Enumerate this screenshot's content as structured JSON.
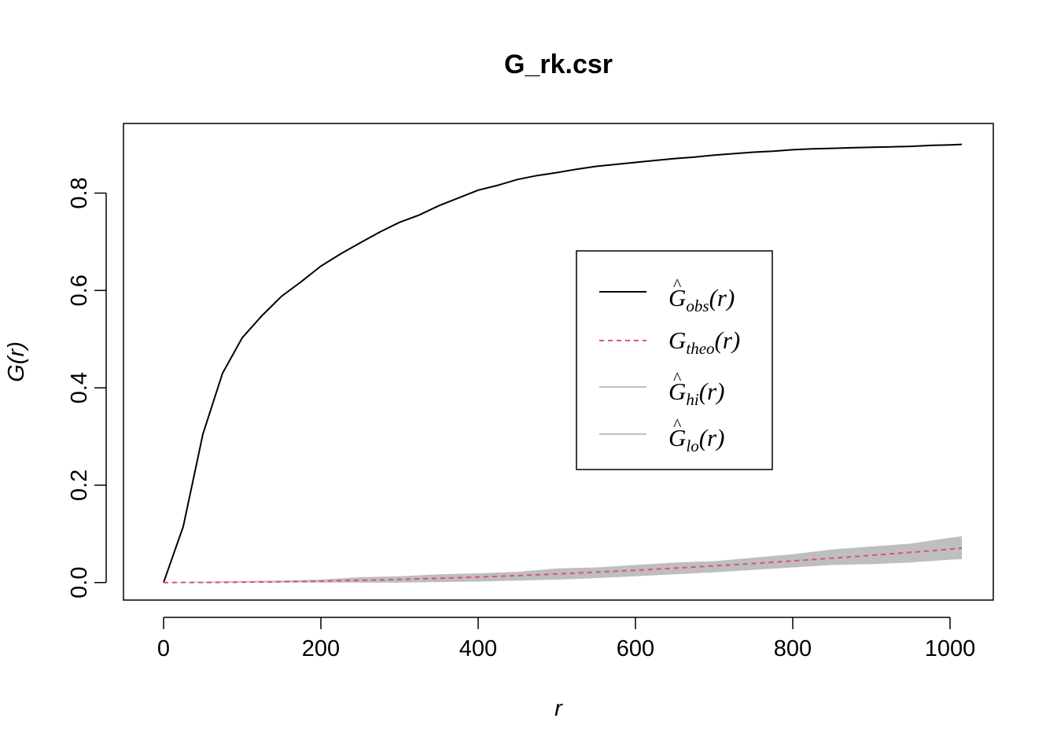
{
  "chart_data": {
    "type": "line",
    "title": "G_rk.csr",
    "xlabel": "r",
    "ylabel": "G(r)",
    "xlim": [
      -51,
      1055
    ],
    "ylim": [
      -0.036,
      0.943
    ],
    "x_ticks": [
      "0",
      "200",
      "400",
      "600",
      "800",
      "1000"
    ],
    "y_ticks": [
      "0.0",
      "0.2",
      "0.4",
      "0.6",
      "0.8"
    ],
    "grid": false,
    "legend_position": "center-right",
    "series": [
      {
        "name": "obs",
        "color": "#000000",
        "style": "solid",
        "x": [
          0,
          25,
          50,
          75,
          100,
          125,
          150,
          175,
          200,
          225,
          250,
          275,
          300,
          325,
          350,
          375,
          400,
          425,
          450,
          475,
          500,
          525,
          550,
          575,
          600,
          625,
          650,
          675,
          700,
          725,
          750,
          775,
          800,
          825,
          850,
          875,
          900,
          925,
          950,
          975,
          1000,
          1015
        ],
        "y": [
          0,
          0.115,
          0.305,
          0.43,
          0.503,
          0.548,
          0.588,
          0.618,
          0.65,
          0.675,
          0.698,
          0.72,
          0.74,
          0.755,
          0.774,
          0.79,
          0.806,
          0.816,
          0.828,
          0.836,
          0.842,
          0.849,
          0.855,
          0.859,
          0.863,
          0.867,
          0.871,
          0.874,
          0.878,
          0.881,
          0.884,
          0.886,
          0.889,
          0.891,
          0.892,
          0.893,
          0.894,
          0.895,
          0.896,
          0.898,
          0.899,
          0.9
        ]
      },
      {
        "name": "theo",
        "color": "#DF536B",
        "style": "dashed",
        "x": [
          0,
          50,
          100,
          150,
          200,
          250,
          300,
          350,
          400,
          450,
          500,
          550,
          600,
          650,
          700,
          750,
          800,
          850,
          900,
          950,
          1000,
          1015
        ],
        "y": [
          0,
          0.0002,
          0.0007,
          0.0016,
          0.0029,
          0.0045,
          0.0064,
          0.0087,
          0.0113,
          0.0143,
          0.0176,
          0.0213,
          0.0253,
          0.0296,
          0.0342,
          0.0392,
          0.0444,
          0.05,
          0.0559,
          0.0621,
          0.0686,
          0.0706
        ]
      },
      {
        "name": "hi",
        "color": "#BEBEBE",
        "style": "band-upper",
        "x": [
          0,
          50,
          100,
          150,
          200,
          250,
          300,
          350,
          400,
          450,
          500,
          550,
          600,
          650,
          700,
          750,
          800,
          850,
          900,
          950,
          1000,
          1015
        ],
        "y": [
          0,
          0.002,
          0.003,
          0.004,
          0.006,
          0.011,
          0.013,
          0.017,
          0.019,
          0.022,
          0.029,
          0.031,
          0.036,
          0.041,
          0.044,
          0.051,
          0.058,
          0.068,
          0.074,
          0.08,
          0.092,
          0.095
        ]
      },
      {
        "name": "lo",
        "color": "#BEBEBE",
        "style": "band-lower",
        "x": [
          0,
          50,
          100,
          150,
          200,
          250,
          300,
          350,
          400,
          450,
          500,
          550,
          600,
          650,
          700,
          750,
          800,
          850,
          900,
          950,
          1000,
          1015
        ],
        "y": [
          0,
          0,
          0,
          0,
          0,
          0,
          0,
          0.001,
          0.002,
          0.004,
          0.006,
          0.009,
          0.013,
          0.017,
          0.021,
          0.026,
          0.031,
          0.036,
          0.038,
          0.041,
          0.047,
          0.048
        ]
      }
    ]
  }
}
